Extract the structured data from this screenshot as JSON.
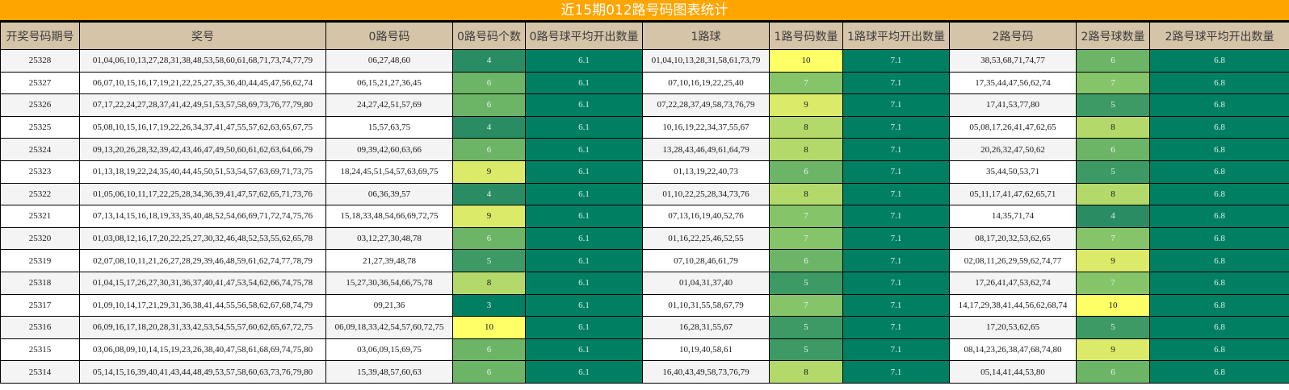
{
  "title": "近15期012路号码图表统计",
  "columns": [
    "开奖号码期号",
    "奖号",
    "0路号码",
    "0路号码个数",
    "0路号球平均开出数量",
    "1路球",
    "1路号码数量",
    "1路球平均开出数量",
    "2路号码",
    "2路号球数量",
    "2路号球平均开出数量"
  ],
  "averages": {
    "route0": "6.1",
    "route1": "7.1",
    "route2": "6.8"
  },
  "heat_colors": {
    "3": "#007f63",
    "4": "#2a8c63",
    "5": "#3d9a65",
    "6": "#6cb567",
    "7": "#86c46a",
    "8": "#b4d96b",
    "9": "#dbea68",
    "10": "#ffff66"
  },
  "rows": [
    {
      "period": "25328",
      "numbers": "01,04,06,10,13,27,28,31,38,48,53,58,60,61,68,71,73,74,77,79",
      "r0": "06,27,48,60",
      "r0_count": "4",
      "r1": "01,04,10,13,28,31,58,61,73,79",
      "r1_count": "10",
      "r2": "38,53,68,71,74,77",
      "r2_count": "6"
    },
    {
      "period": "25327",
      "numbers": "06,07,10,15,16,17,19,21,22,25,27,35,36,40,44,45,47,56,62,74",
      "r0": "06,15,21,27,36,45",
      "r0_count": "6",
      "r1": "07,10,16,19,22,25,40",
      "r1_count": "7",
      "r2": "17,35,44,47,56,62,74",
      "r2_count": "7"
    },
    {
      "period": "25326",
      "numbers": "07,17,22,24,27,28,37,41,42,49,51,53,57,58,69,73,76,77,79,80",
      "r0": "24,27,42,51,57,69",
      "r0_count": "6",
      "r1": "07,22,28,37,49,58,73,76,79",
      "r1_count": "9",
      "r2": "17,41,53,77,80",
      "r2_count": "5"
    },
    {
      "period": "25325",
      "numbers": "05,08,10,15,16,17,19,22,26,34,37,41,47,55,57,62,63,65,67,75",
      "r0": "15,57,63,75",
      "r0_count": "4",
      "r1": "10,16,19,22,34,37,55,67",
      "r1_count": "8",
      "r2": "05,08,17,26,41,47,62,65",
      "r2_count": "8"
    },
    {
      "period": "25324",
      "numbers": "09,13,20,26,28,32,39,42,43,46,47,49,50,60,61,62,63,64,66,79",
      "r0": "09,39,42,60,63,66",
      "r0_count": "6",
      "r1": "13,28,43,46,49,61,64,79",
      "r1_count": "8",
      "r2": "20,26,32,47,50,62",
      "r2_count": "6"
    },
    {
      "period": "25323",
      "numbers": "01,13,18,19,22,24,35,40,44,45,50,51,53,54,57,63,69,71,73,75",
      "r0": "18,24,45,51,54,57,63,69,75",
      "r0_count": "9",
      "r1": "01,13,19,22,40,73",
      "r1_count": "6",
      "r2": "35,44,50,53,71",
      "r2_count": "5"
    },
    {
      "period": "25322",
      "numbers": "01,05,06,10,11,17,22,25,28,34,36,39,41,47,57,62,65,71,73,76",
      "r0": "06,36,39,57",
      "r0_count": "4",
      "r1": "01,10,22,25,28,34,73,76",
      "r1_count": "8",
      "r2": "05,11,17,41,47,62,65,71",
      "r2_count": "8"
    },
    {
      "period": "25321",
      "numbers": "07,13,14,15,16,18,19,33,35,40,48,52,54,66,69,71,72,74,75,76",
      "r0": "15,18,33,48,54,66,69,72,75",
      "r0_count": "9",
      "r1": "07,13,16,19,40,52,76",
      "r1_count": "7",
      "r2": "14,35,71,74",
      "r2_count": "4"
    },
    {
      "period": "25320",
      "numbers": "01,03,08,12,16,17,20,22,25,27,30,32,46,48,52,53,55,62,65,78",
      "r0": "03,12,27,30,48,78",
      "r0_count": "6",
      "r1": "01,16,22,25,46,52,55",
      "r1_count": "7",
      "r2": "08,17,20,32,53,62,65",
      "r2_count": "7"
    },
    {
      "period": "25319",
      "numbers": "02,07,08,10,11,21,26,27,28,29,39,46,48,59,61,62,74,77,78,79",
      "r0": "21,27,39,48,78",
      "r0_count": "5",
      "r1": "07,10,28,46,61,79",
      "r1_count": "6",
      "r2": "02,08,11,26,29,59,62,74,77",
      "r2_count": "9"
    },
    {
      "period": "25318",
      "numbers": "01,04,15,17,26,27,30,31,36,37,40,41,47,53,54,62,66,74,75,78",
      "r0": "15,27,30,36,54,66,75,78",
      "r0_count": "8",
      "r1": "01,04,31,37,40",
      "r1_count": "5",
      "r2": "17,26,41,47,53,62,74",
      "r2_count": "7"
    },
    {
      "period": "25317",
      "numbers": "01,09,10,14,17,21,29,31,36,38,41,44,55,56,58,62,67,68,74,79",
      "r0": "09,21,36",
      "r0_count": "3",
      "r1": "01,10,31,55,58,67,79",
      "r1_count": "7",
      "r2": "14,17,29,38,41,44,56,62,68,74",
      "r2_count": "10"
    },
    {
      "period": "25316",
      "numbers": "06,09,16,17,18,20,28,31,33,42,53,54,55,57,60,62,65,67,72,75",
      "r0": "06,09,18,33,42,54,57,60,72,75",
      "r0_count": "10",
      "r1": "16,28,31,55,67",
      "r1_count": "5",
      "r2": "17,20,53,62,65",
      "r2_count": "5"
    },
    {
      "period": "25315",
      "numbers": "03,06,08,09,10,14,15,19,23,26,38,40,47,58,61,68,69,74,75,80",
      "r0": "03,06,09,15,69,75",
      "r0_count": "6",
      "r1": "10,19,40,58,61",
      "r1_count": "5",
      "r2": "08,14,23,26,38,47,68,74,80",
      "r2_count": "9"
    },
    {
      "period": "25314",
      "numbers": "05,14,15,16,39,40,41,43,44,48,49,53,57,58,60,63,73,76,79,80",
      "r0": "15,39,48,57,60,63",
      "r0_count": "6",
      "r1": "16,40,43,49,58,73,76,79",
      "r1_count": "8",
      "r2": "05,14,41,44,53,80",
      "r2_count": "6"
    }
  ]
}
